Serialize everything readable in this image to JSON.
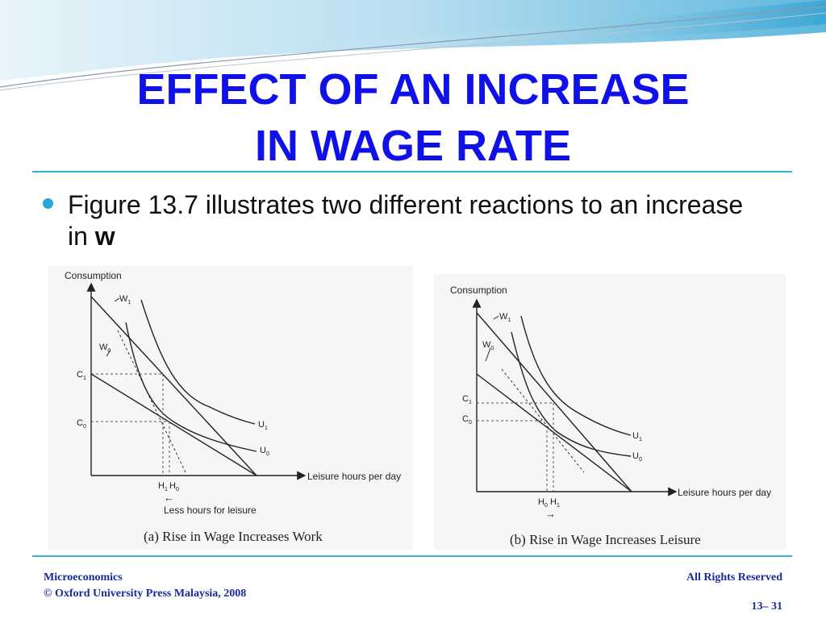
{
  "slide": {
    "title_line1": "EFFECT OF AN INCREASE",
    "title_line2": "IN WAGE RATE",
    "bullet_text": "Figure 13.7 illustrates two different reactions to an increase in ",
    "bullet_bold": "w"
  },
  "figure_a": {
    "y_axis_label": "Consumption",
    "x_axis_label": "Leisure hours per day",
    "budget_line_new": "W",
    "budget_line_new_sub": "1",
    "budget_line_old": "W",
    "budget_line_old_sub": "0",
    "c1": "C",
    "c1_sub": "1",
    "c0": "C",
    "c0_sub": "0",
    "u1": "U",
    "u1_sub": "1",
    "u0": "U",
    "u0_sub": "0",
    "h1": "H",
    "h1_sub": "1",
    "h0": "H",
    "h0_sub": "0",
    "arrow": "←",
    "note": "Less hours for leisure",
    "caption": "(a)  Rise in Wage Increases Work"
  },
  "figure_b": {
    "y_axis_label": "Consumption",
    "x_axis_label": "Leisure hours per day",
    "budget_line_new": "W",
    "budget_line_new_sub": "1",
    "budget_line_old": "W",
    "budget_line_old_sub": "0",
    "c1": "C",
    "c1_sub": "1",
    "c0": "C",
    "c0_sub": "0",
    "u1": "U",
    "u1_sub": "1",
    "u0": "U",
    "u0_sub": "0",
    "h0": "H",
    "h0_sub": "0",
    "h1": "H",
    "h1_sub": "1",
    "arrow": "→",
    "caption": "(b)  Rise in Wage Increases Leisure"
  },
  "footer": {
    "course": "Microeconomics",
    "copyright": "© Oxford University Press Malaysia, 2008",
    "rights": "All Rights Reserved",
    "page": "13– 31"
  },
  "colors": {
    "title": "#1010e8",
    "accent": "#26a5d6",
    "footer_text": "#1a2a9a"
  }
}
